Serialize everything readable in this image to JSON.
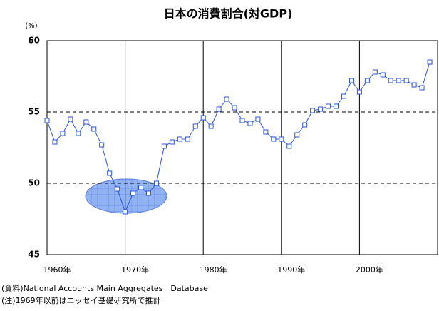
{
  "chart_data": {
    "type": "line",
    "title": "日本の消費割合(対GDP)",
    "y_unit": "(%)",
    "x": [
      1960,
      1961,
      1962,
      1963,
      1964,
      1965,
      1966,
      1967,
      1968,
      1969,
      1970,
      1971,
      1972,
      1973,
      1974,
      1975,
      1976,
      1977,
      1978,
      1979,
      1980,
      1981,
      1982,
      1983,
      1984,
      1985,
      1986,
      1987,
      1988,
      1989,
      1990,
      1991,
      1992,
      1993,
      1994,
      1995,
      1996,
      1997,
      1998,
      1999,
      2000,
      2001,
      2002,
      2003,
      2004,
      2005,
      2006,
      2007,
      2008,
      2009
    ],
    "series": [
      {
        "color": "#2a55e0",
        "values": [
          54.4,
          52.9,
          53.5,
          54.5,
          53.5,
          54.3,
          53.8,
          52.7,
          50.7,
          49.6,
          48.0,
          49.3,
          49.7,
          49.3,
          50.0,
          52.6,
          52.9,
          53.1,
          53.1,
          54.0,
          54.6,
          54.0,
          55.2,
          55.9,
          55.3,
          54.4,
          54.2,
          54.5,
          53.6,
          53.1,
          53.1,
          52.6,
          53.4,
          54.1,
          55.1,
          55.2,
          55.4,
          55.4,
          56.1,
          57.2,
          56.4,
          57.2,
          57.8,
          57.6,
          57.2,
          57.2,
          57.2,
          56.9,
          56.7,
          58.5
        ]
      }
    ],
    "xlim": [
      1960,
      2010
    ],
    "xticks": [
      {
        "value": 1960,
        "label": "1960年"
      },
      {
        "value": 1970,
        "label": "1970年"
      },
      {
        "value": 1980,
        "label": "1980年"
      },
      {
        "value": 1990,
        "label": "1990年"
      },
      {
        "value": 2000,
        "label": "2000年"
      }
    ],
    "ylim": [
      45,
      60
    ],
    "yticks": [
      45,
      50,
      55,
      60
    ],
    "grid": true,
    "notes": [
      "(資料)National Accounts Main Aggregates　Database",
      "(注)1969年以前はニッセイ基礎研究所で推計"
    ]
  }
}
